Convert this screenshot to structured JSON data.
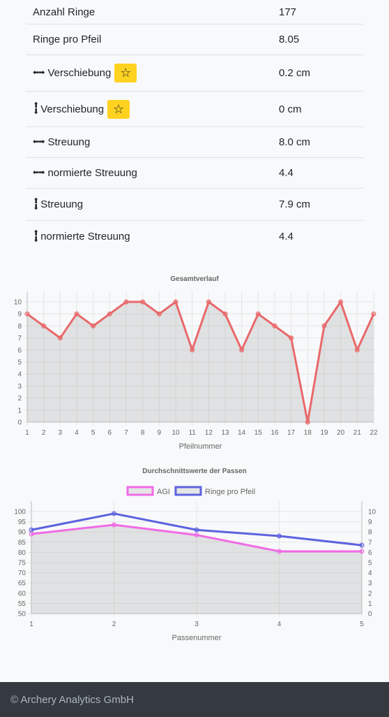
{
  "stats": [
    {
      "label": "Anzahl Ringe",
      "value": "177",
      "icon": "",
      "star": false
    },
    {
      "label": "Ringe pro Pfeil",
      "value": "8.05",
      "icon": "",
      "star": false
    },
    {
      "label": "Verschiebung",
      "value": "0.2 cm",
      "icon": "horizontal-arrows-icon",
      "star": true
    },
    {
      "label": "Verschiebung",
      "value": "0 cm",
      "icon": "vertical-arrows-icon",
      "star": true
    },
    {
      "label": "Streuung",
      "value": "8.0 cm",
      "icon": "horizontal-arrows-icon",
      "star": false
    },
    {
      "label": "normierte Streuung",
      "value": "4.4",
      "icon": "horizontal-arrows-icon",
      "star": false
    },
    {
      "label": "Streuung",
      "value": "7.9 cm",
      "icon": "vertical-arrows-icon",
      "star": false
    },
    {
      "label": "normierte Streuung",
      "value": "4.4",
      "icon": "vertical-arrows-icon",
      "star": false
    }
  ],
  "chart_data": [
    {
      "type": "line",
      "title": "Gesamtverlauf",
      "xlabel": "Pfeilnummer",
      "ylabel": "",
      "x": [
        1,
        2,
        3,
        4,
        5,
        6,
        7,
        8,
        9,
        10,
        11,
        12,
        13,
        14,
        15,
        16,
        17,
        18,
        19,
        20,
        21,
        22
      ],
      "series": [
        {
          "values": [
            9,
            8,
            7,
            9,
            8,
            9,
            10,
            10,
            9,
            10,
            6,
            10,
            9,
            6,
            9,
            8,
            7,
            0,
            8,
            10,
            6,
            9
          ],
          "color": "#e8696b",
          "fill": true
        }
      ],
      "ylim": [
        0,
        10
      ],
      "yticks": [
        0,
        1,
        2,
        3,
        4,
        5,
        6,
        7,
        8,
        9,
        10
      ],
      "grid": true
    },
    {
      "type": "line",
      "title": "Durchschnittswerte der Passen",
      "xlabel": "Passenummer",
      "x": [
        1,
        2,
        3,
        4,
        5
      ],
      "series": [
        {
          "name": "AGI",
          "values": [
            89,
            93.5,
            88.5,
            80.5,
            80.5
          ],
          "color": "#f06be6",
          "axis": "left",
          "fill": true
        },
        {
          "name": "Ringe pro Pfeil",
          "values": [
            8.2,
            9.8,
            8.2,
            7.6,
            6.7
          ],
          "color": "#5c63df",
          "axis": "right",
          "fill": false
        }
      ],
      "ylim_left": [
        50,
        100
      ],
      "yticks_left": [
        50,
        55,
        60,
        65,
        70,
        75,
        80,
        85,
        90,
        95,
        100
      ],
      "ylim_right": [
        0,
        10
      ],
      "yticks_right": [
        0,
        1,
        2,
        3,
        4,
        5,
        6,
        7,
        8,
        9,
        10
      ],
      "legend": "top",
      "grid": true
    }
  ],
  "footer": {
    "text": "© Archery Analytics GmbH"
  }
}
